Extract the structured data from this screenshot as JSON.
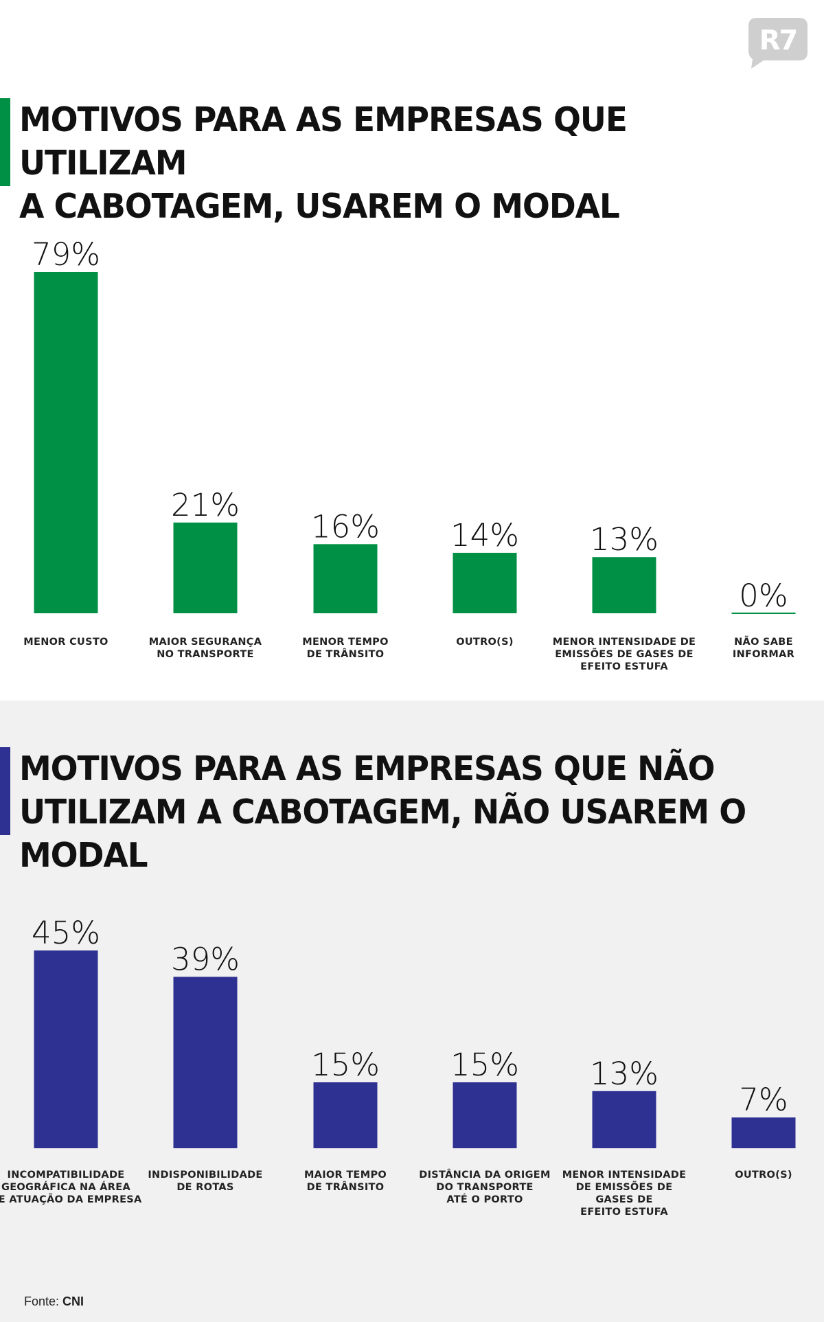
{
  "logo": {
    "text": "R7"
  },
  "colors": {
    "green": "#009045",
    "blue": "#2e3192",
    "bg_bottom": "#f1f1f1"
  },
  "chart_data": [
    {
      "type": "bar",
      "title": "MOTIVOS PARA AS EMPRESAS QUE UTILIZAM\nA CABOTAGEM, USAREM O MODAL",
      "categories": [
        [
          "MENOR CUSTO"
        ],
        [
          "MAIOR SEGURANÇA",
          "NO TRANSPORTE"
        ],
        [
          "MENOR TEMPO",
          "DE TRÂNSITO"
        ],
        [
          "OUTRO(S)"
        ],
        [
          "MENOR INTENSIDADE DE",
          "EMISSÕES DE GASES DE",
          "EFEITO ESTUFA"
        ],
        [
          "NÃO SABE",
          "INFORMAR"
        ]
      ],
      "values": [
        79,
        21,
        16,
        14,
        13,
        0
      ],
      "value_labels": [
        "79%",
        "21%",
        "16%",
        "14%",
        "13%",
        "0%"
      ],
      "unit": "%",
      "color": "#009045",
      "ylim": [
        0,
        79
      ]
    },
    {
      "type": "bar",
      "title": "MOTIVOS PARA AS EMPRESAS QUE NÃO\nUTILIZAM A CABOTAGEM, NÃO USAREM O MODAL",
      "categories": [
        [
          "INCOMPATIBILIDADE",
          "GEOGRÁFICA NA ÁREA",
          "DE ATUAÇÃO DA EMPRESA"
        ],
        [
          "INDISPONIBILIDADE",
          "DE ROTAS"
        ],
        [
          "MAIOR TEMPO",
          "DE TRÂNSITO"
        ],
        [
          "DISTÂNCIA DA ORIGEM",
          "DO TRANSPORTE",
          "ATÉ O PORTO"
        ],
        [
          "MENOR INTENSIDADE",
          "DE EMISSÕES DE",
          "GASES DE",
          "EFEITO ESTUFA"
        ],
        [
          "OUTRO(S)"
        ]
      ],
      "values": [
        45,
        39,
        15,
        15,
        13,
        7
      ],
      "value_labels": [
        "45%",
        "39%",
        "15%",
        "15%",
        "13%",
        "7%"
      ],
      "unit": "%",
      "color": "#2e3192",
      "ylim": [
        0,
        45
      ]
    }
  ],
  "source": {
    "label": "Fonte:",
    "value": "CNI"
  }
}
